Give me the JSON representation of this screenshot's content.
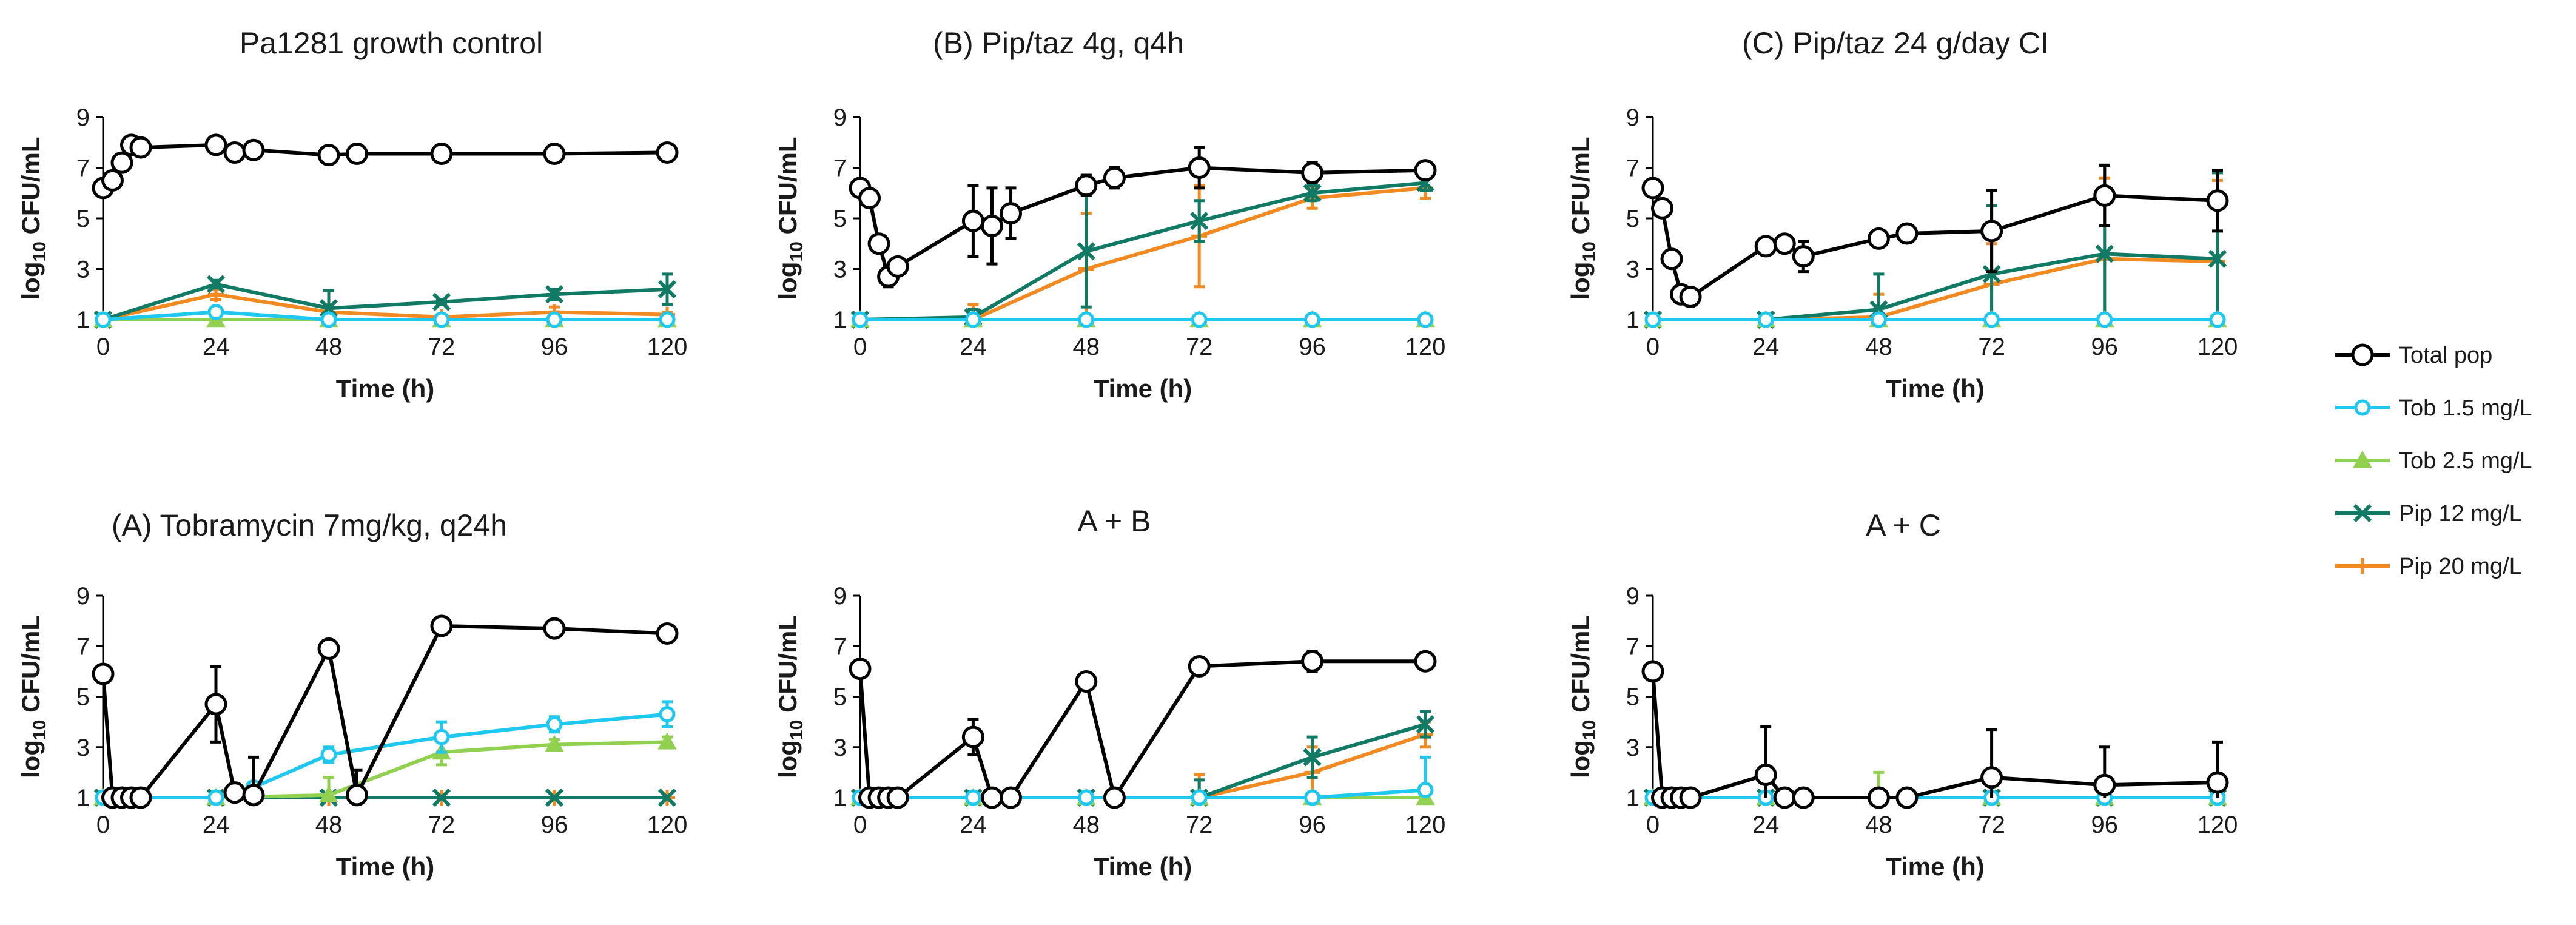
{
  "legend": {
    "position": "right",
    "entries": [
      {
        "name": "Total pop",
        "color": "#000000",
        "marker": "circle"
      },
      {
        "name": "Tob 1.5 mg/L",
        "color": "#1ec8f0",
        "marker": "dot"
      },
      {
        "name": "Tob 2.5 mg/L",
        "color": "#92d050",
        "marker": "triangle"
      },
      {
        "name": "Pip 12 mg/L",
        "color": "#117a65",
        "marker": "x"
      },
      {
        "name": "Pip 20 mg/L",
        "color": "#f28a21",
        "marker": "plus"
      }
    ]
  },
  "chart_data": [
    {
      "type": "line",
      "title": "Pa1281 growth control",
      "xlabel": "Time (h)",
      "ylabel_main": "log",
      "ylabel_sub": "10",
      "ylabel_rest": " CFU/mL",
      "xticks": [
        0,
        24,
        48,
        72,
        96,
        120
      ],
      "yticks": [
        1,
        3,
        5,
        7,
        9
      ],
      "xlim": [
        0,
        120
      ],
      "ylim": [
        1,
        9
      ],
      "series": [
        {
          "name": "Total pop",
          "x": [
            0,
            2,
            4,
            6,
            8,
            24,
            28,
            32,
            48,
            54,
            72,
            96,
            120
          ],
          "y": [
            6.2,
            6.5,
            7.2,
            7.9,
            7.8,
            7.9,
            7.6,
            7.7,
            7.5,
            7.55,
            7.55,
            7.55,
            7.6
          ],
          "err": [
            0.2,
            0.2,
            0.2,
            0.15,
            0.15,
            0.1,
            0.15,
            0.2,
            0.2,
            0.1,
            0.1,
            0.1,
            0.1
          ]
        },
        {
          "name": "Tob 1.5 mg/L",
          "x": [
            0,
            24,
            48,
            72,
            96,
            120
          ],
          "y": [
            1.0,
            1.3,
            1.0,
            1.0,
            1.0,
            1.0
          ],
          "err": [
            0,
            0.1,
            0,
            0,
            0,
            0
          ]
        },
        {
          "name": "Tob 2.5 mg/L",
          "x": [
            0,
            24,
            48,
            72,
            96,
            120
          ],
          "y": [
            1.0,
            1.0,
            1.0,
            1.0,
            1.0,
            1.0
          ],
          "err": [
            0,
            0,
            0,
            0,
            0,
            0
          ]
        },
        {
          "name": "Pip 12 mg/L",
          "x": [
            0,
            24,
            48,
            72,
            96,
            120
          ],
          "y": [
            1.0,
            2.4,
            1.45,
            1.7,
            2.0,
            2.2
          ],
          "err": [
            0,
            0.15,
            0.7,
            0.1,
            0.2,
            0.6
          ]
        },
        {
          "name": "Pip 20 mg/L",
          "x": [
            0,
            24,
            48,
            72,
            96,
            120
          ],
          "y": [
            1.0,
            2.0,
            1.3,
            1.1,
            1.3,
            1.2
          ],
          "err": [
            0,
            0.2,
            0.3,
            0.1,
            0.2,
            0.1
          ]
        }
      ]
    },
    {
      "type": "line",
      "title": "(B) Pip/taz 4g, q4h",
      "xlabel": "Time (h)",
      "ylabel_main": "log",
      "ylabel_sub": "10",
      "ylabel_rest": " CFU/mL",
      "xticks": [
        0,
        24,
        48,
        72,
        96,
        120
      ],
      "yticks": [
        1,
        3,
        5,
        7,
        9
      ],
      "xlim": [
        0,
        120
      ],
      "ylim": [
        1,
        9
      ],
      "series": [
        {
          "name": "Total pop",
          "x": [
            0,
            2,
            4,
            6,
            8,
            24,
            28,
            32,
            48,
            54,
            72,
            96,
            120
          ],
          "y": [
            6.2,
            5.8,
            4.0,
            2.7,
            3.1,
            4.9,
            4.7,
            5.2,
            6.3,
            6.6,
            7.0,
            6.8,
            6.9
          ],
          "err": [
            0.2,
            0.3,
            0.2,
            0.4,
            0.2,
            1.4,
            1.5,
            1.0,
            0.4,
            0.4,
            0.8,
            0.4,
            0.2
          ]
        },
        {
          "name": "Tob 1.5 mg/L",
          "x": [
            0,
            24,
            48,
            72,
            96,
            120
          ],
          "y": [
            1.0,
            1.0,
            1.0,
            1.0,
            1.0,
            1.0
          ],
          "err": [
            0,
            0,
            0,
            0,
            0,
            0
          ]
        },
        {
          "name": "Tob 2.5 mg/L",
          "x": [
            0,
            24,
            48,
            72,
            96,
            120
          ],
          "y": [
            1.0,
            1.0,
            1.0,
            1.0,
            1.0,
            1.0
          ],
          "err": [
            0,
            0,
            0,
            0,
            0,
            0
          ]
        },
        {
          "name": "Pip 12 mg/L",
          "x": [
            0,
            24,
            48,
            72,
            96,
            120
          ],
          "y": [
            1.0,
            1.1,
            3.7,
            4.9,
            6.0,
            6.4
          ],
          "err": [
            0,
            0.3,
            2.2,
            0.8,
            0.3,
            0.3
          ]
        },
        {
          "name": "Pip 20 mg/L",
          "x": [
            0,
            24,
            48,
            72,
            96,
            120
          ],
          "y": [
            1.0,
            1.0,
            3.0,
            4.3,
            5.8,
            6.2
          ],
          "err": [
            0,
            0.6,
            2.2,
            2.0,
            0.4,
            0.4
          ]
        }
      ]
    },
    {
      "type": "line",
      "title": "(C) Pip/taz 24 g/day CI",
      "xlabel": "Time (h)",
      "ylabel_main": "log",
      "ylabel_sub": "10",
      "ylabel_rest": " CFU/mL",
      "xticks": [
        0,
        24,
        48,
        72,
        96,
        120
      ],
      "yticks": [
        1,
        3,
        5,
        7,
        9
      ],
      "xlim": [
        0,
        120
      ],
      "ylim": [
        1,
        9
      ],
      "series": [
        {
          "name": "Total pop",
          "x": [
            0,
            2,
            4,
            6,
            8,
            24,
            28,
            32,
            48,
            54,
            72,
            96,
            120
          ],
          "y": [
            6.2,
            5.4,
            3.4,
            2.0,
            1.9,
            3.9,
            4.0,
            3.5,
            4.2,
            4.4,
            4.5,
            5.9,
            5.7
          ],
          "err": [
            0.3,
            0.2,
            0.2,
            0.3,
            0.1,
            0.2,
            0.3,
            0.6,
            0.2,
            0.2,
            1.6,
            1.2,
            1.2
          ]
        },
        {
          "name": "Tob 1.5 mg/L",
          "x": [
            0,
            24,
            48,
            72,
            96,
            120
          ],
          "y": [
            1.0,
            1.0,
            1.0,
            1.0,
            1.0,
            1.0
          ],
          "err": [
            0,
            0,
            0,
            0,
            0,
            0
          ]
        },
        {
          "name": "Tob 2.5 mg/L",
          "x": [
            0,
            24,
            48,
            72,
            96,
            120
          ],
          "y": [
            1.0,
            1.0,
            1.0,
            1.0,
            1.0,
            1.0
          ],
          "err": [
            0,
            0,
            0,
            0,
            0,
            0
          ]
        },
        {
          "name": "Pip 12 mg/L",
          "x": [
            0,
            24,
            48,
            72,
            96,
            120
          ],
          "y": [
            1.0,
            1.0,
            1.4,
            2.8,
            3.6,
            3.4
          ],
          "err": [
            0,
            0,
            1.4,
            2.7,
            3.5,
            3.4
          ]
        },
        {
          "name": "Pip 20 mg/L",
          "x": [
            0,
            24,
            48,
            72,
            96,
            120
          ],
          "y": [
            1.0,
            1.0,
            1.1,
            2.4,
            3.4,
            3.3
          ],
          "err": [
            0,
            0,
            0.9,
            1.6,
            3.2,
            3.2
          ]
        }
      ]
    },
    {
      "type": "line",
      "title": "(A) Tobramycin 7mg/kg, q24h",
      "xlabel": "Time (h)",
      "ylabel_main": "log",
      "ylabel_sub": "10",
      "ylabel_rest": " CFU/mL",
      "xticks": [
        0,
        24,
        48,
        72,
        96,
        120
      ],
      "yticks": [
        1,
        3,
        5,
        7,
        9
      ],
      "xlim": [
        0,
        120
      ],
      "ylim": [
        1,
        9
      ],
      "series": [
        {
          "name": "Total pop",
          "x": [
            0,
            2,
            4,
            6,
            8,
            24,
            28,
            32,
            48,
            54,
            72,
            96,
            120
          ],
          "y": [
            5.9,
            1.0,
            1.0,
            1.0,
            1.0,
            4.7,
            1.2,
            1.1,
            6.9,
            1.1,
            7.8,
            7.7,
            7.5
          ],
          "err": [
            0.1,
            0,
            0,
            0,
            0,
            1.5,
            0.3,
            1.5,
            0.1,
            1.0,
            0.1,
            0.1,
            0.1
          ]
        },
        {
          "name": "Tob 1.5 mg/L",
          "x": [
            0,
            24,
            32,
            48,
            72,
            96,
            120
          ],
          "y": [
            1.0,
            1.0,
            1.4,
            2.7,
            3.4,
            3.9,
            4.3
          ],
          "err": [
            0,
            0,
            0.2,
            0.3,
            0.6,
            0.3,
            0.5
          ]
        },
        {
          "name": "Tob 2.5 mg/L",
          "x": [
            0,
            24,
            48,
            72,
            96,
            120
          ],
          "y": [
            1.0,
            1.0,
            1.1,
            2.8,
            3.1,
            3.2
          ],
          "err": [
            0,
            0,
            0.7,
            0.5,
            0.2,
            0.2
          ]
        },
        {
          "name": "Pip 12 mg/L",
          "x": [
            0,
            24,
            48,
            72,
            96,
            120
          ],
          "y": [
            1.0,
            1.0,
            1.0,
            1.0,
            1.0,
            1.0
          ],
          "err": [
            0,
            0,
            0,
            0,
            0,
            0
          ]
        },
        {
          "name": "Pip 20 mg/L",
          "x": [
            0,
            24,
            48,
            72,
            96,
            120
          ],
          "y": [
            1.0,
            1.0,
            1.0,
            1.0,
            1.0,
            1.0
          ],
          "err": [
            0,
            0,
            0,
            0,
            0,
            0
          ]
        }
      ]
    },
    {
      "type": "line",
      "title": "A + B",
      "xlabel": "Time (h)",
      "ylabel_main": "log",
      "ylabel_sub": "10",
      "ylabel_rest": " CFU/mL",
      "xticks": [
        0,
        24,
        48,
        72,
        96,
        120
      ],
      "yticks": [
        1,
        3,
        5,
        7,
        9
      ],
      "xlim": [
        0,
        120
      ],
      "ylim": [
        1,
        9
      ],
      "series": [
        {
          "name": "Total pop",
          "x": [
            0,
            2,
            4,
            6,
            8,
            24,
            28,
            32,
            48,
            54,
            72,
            96,
            120
          ],
          "y": [
            6.1,
            1.0,
            1.0,
            1.0,
            1.0,
            3.4,
            1.0,
            1.0,
            5.6,
            1.0,
            6.2,
            6.4,
            6.4
          ],
          "err": [
            0.2,
            0,
            0,
            0,
            0,
            0.7,
            0,
            0,
            0.2,
            0,
            0.1,
            0.4,
            0.2
          ]
        },
        {
          "name": "Tob 1.5 mg/L",
          "x": [
            0,
            24,
            48,
            72,
            96,
            120
          ],
          "y": [
            1.0,
            1.0,
            1.0,
            1.0,
            1.0,
            1.3
          ],
          "err": [
            0,
            0,
            0,
            0,
            0,
            1.3
          ]
        },
        {
          "name": "Tob 2.5 mg/L",
          "x": [
            0,
            24,
            48,
            72,
            96,
            120
          ],
          "y": [
            1.0,
            1.0,
            1.0,
            1.0,
            1.0,
            1.0
          ],
          "err": [
            0,
            0,
            0,
            0,
            0,
            0
          ]
        },
        {
          "name": "Pip 12 mg/L",
          "x": [
            0,
            24,
            48,
            72,
            96,
            120
          ],
          "y": [
            1.0,
            1.0,
            1.0,
            1.0,
            2.6,
            3.9
          ],
          "err": [
            0,
            0,
            0,
            0.7,
            0.8,
            0.5
          ]
        },
        {
          "name": "Pip 20 mg/L",
          "x": [
            0,
            24,
            48,
            72,
            96,
            120
          ],
          "y": [
            1.0,
            1.0,
            1.0,
            1.0,
            2.0,
            3.5
          ],
          "err": [
            0,
            0,
            0,
            0.9,
            1.0,
            0.5
          ]
        }
      ]
    },
    {
      "type": "line",
      "title": "A + C",
      "xlabel": "Time (h)",
      "ylabel_main": "log",
      "ylabel_sub": "10",
      "ylabel_rest": " CFU/mL",
      "xticks": [
        0,
        24,
        48,
        72,
        96,
        120
      ],
      "yticks": [
        1,
        3,
        5,
        7,
        9
      ],
      "xlim": [
        0,
        120
      ],
      "ylim": [
        1,
        9
      ],
      "series": [
        {
          "name": "Total pop",
          "x": [
            0,
            2,
            4,
            6,
            8,
            24,
            28,
            32,
            48,
            54,
            72,
            96,
            120
          ],
          "y": [
            6.0,
            1.0,
            1.0,
            1.0,
            1.0,
            1.9,
            1.0,
            1.0,
            1.0,
            1.0,
            1.8,
            1.5,
            1.6
          ],
          "err": [
            0.2,
            0,
            0,
            0,
            0,
            1.9,
            0,
            0,
            0.3,
            0,
            1.9,
            1.5,
            1.6
          ]
        },
        {
          "name": "Tob 1.5 mg/L",
          "x": [
            0,
            24,
            48,
            72,
            96,
            120
          ],
          "y": [
            1.0,
            1.0,
            1.0,
            1.0,
            1.0,
            1.0
          ],
          "err": [
            0,
            0,
            0,
            0,
            0,
            0
          ]
        },
        {
          "name": "Tob 2.5 mg/L",
          "x": [
            0,
            24,
            48,
            72,
            96,
            120
          ],
          "y": [
            1.0,
            1.0,
            1.0,
            1.0,
            1.0,
            1.0
          ],
          "err": [
            0,
            0,
            1.0,
            0,
            0,
            0
          ]
        },
        {
          "name": "Pip 12 mg/L",
          "x": [
            0,
            24,
            48,
            72,
            96,
            120
          ],
          "y": [
            1.0,
            1.0,
            1.0,
            1.0,
            1.0,
            1.0
          ],
          "err": [
            0,
            0,
            0,
            0,
            0,
            0
          ]
        },
        {
          "name": "Pip 20 mg/L",
          "x": [
            0,
            24,
            48,
            72,
            96,
            120
          ],
          "y": [
            1.0,
            1.0,
            1.0,
            1.0,
            1.0,
            1.0
          ],
          "err": [
            0,
            0,
            0,
            0,
            0,
            0
          ]
        }
      ]
    }
  ]
}
